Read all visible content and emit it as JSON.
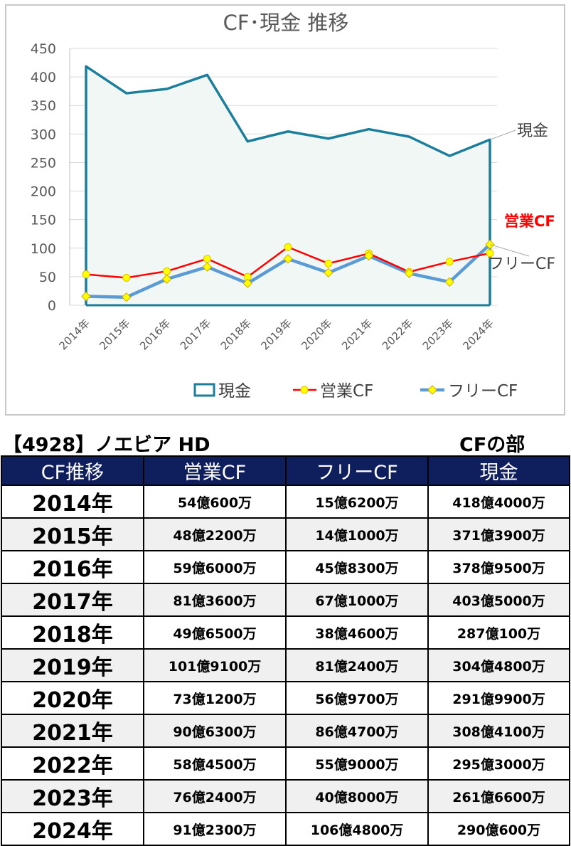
{
  "chart_data": {
    "type": "line",
    "title": "CF･現金 推移",
    "categories": [
      "2014年",
      "2015年",
      "2016年",
      "2017年",
      "2018年",
      "2019年",
      "2020年",
      "2021年",
      "2022年",
      "2023年",
      "2024年"
    ],
    "ylim": [
      0,
      450
    ],
    "yticks": [
      0,
      50,
      100,
      150,
      200,
      250,
      300,
      350,
      400,
      450
    ],
    "grid": true,
    "legend_position": "bottom",
    "series": [
      {
        "name": "現金",
        "label": "現金",
        "style": "area",
        "color": "#1b7f9c",
        "fill": "#f1f7f4",
        "values": [
          418.4,
          371.39,
          378.95,
          403.5,
          287.01,
          304.48,
          291.99,
          308.41,
          295.3,
          261.66,
          290.06
        ]
      },
      {
        "name": "営業CF",
        "label": "営業CF",
        "style": "line-marker-circle",
        "color": "#ff0000",
        "labelColor": "#ff0000",
        "values": [
          54.06,
          48.22,
          59.6,
          81.36,
          49.65,
          101.91,
          73.12,
          90.63,
          58.45,
          76.24,
          91.23
        ]
      },
      {
        "name": "フリーCF",
        "label": "フリーCF",
        "style": "line-marker-diamond",
        "color": "#5b9bd5",
        "values": [
          15.62,
          14.1,
          45.83,
          67.1,
          38.46,
          81.24,
          56.97,
          86.47,
          55.9,
          40.8,
          106.48
        ]
      }
    ]
  },
  "company_title": "【4928】ノエビア HD",
  "section_title": "CFの部",
  "table": {
    "headers": [
      "CF推移",
      "営業CF",
      "フリーCF",
      "現金"
    ],
    "rows": [
      [
        "2014年",
        "54億600万",
        "15億6200万",
        "418億4000万"
      ],
      [
        "2015年",
        "48億2200万",
        "14億1000万",
        "371億3900万"
      ],
      [
        "2016年",
        "59億6000万",
        "45億8300万",
        "378億9500万"
      ],
      [
        "2017年",
        "81億3600万",
        "67億1000万",
        "403億5000万"
      ],
      [
        "2018年",
        "49億6500万",
        "38億4600万",
        "287億100万"
      ],
      [
        "2019年",
        "101億9100万",
        "81億2400万",
        "304億4800万"
      ],
      [
        "2020年",
        "73億1200万",
        "56億9700万",
        "291億9900万"
      ],
      [
        "2021年",
        "90億6300万",
        "86億4700万",
        "308億4100万"
      ],
      [
        "2022年",
        "58億4500万",
        "55億9000万",
        "295億3000万"
      ],
      [
        "2023年",
        "76億2400万",
        "40億8000万",
        "261億6600万"
      ],
      [
        "2024年",
        "91億2300万",
        "106億4800万",
        "290億600万"
      ]
    ]
  }
}
